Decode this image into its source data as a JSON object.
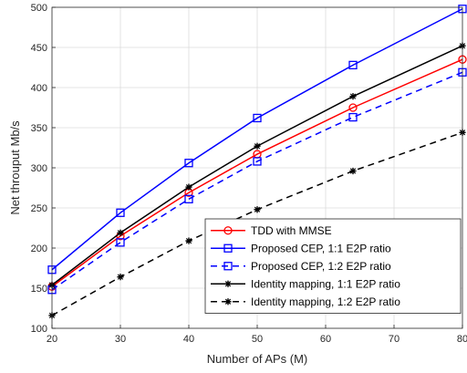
{
  "chart_data": {
    "type": "line",
    "title": "",
    "xlabel": "Number of APs (M)",
    "ylabel": "Net throuput Mb/s",
    "xlim": [
      20,
      80
    ],
    "ylim": [
      100,
      500
    ],
    "xticks": [
      20,
      30,
      40,
      50,
      60,
      70,
      80
    ],
    "yticks": [
      100,
      150,
      200,
      250,
      300,
      350,
      400,
      450,
      500
    ],
    "grid": true,
    "legend_position": "bottom-right",
    "x": [
      20,
      30,
      40,
      50,
      64,
      80
    ],
    "series": [
      {
        "name": "TDD with MMSE",
        "values": [
          152,
          215,
          269,
          317,
          375,
          435
        ],
        "color": "#ff0000",
        "dash": "solid",
        "marker": "circle"
      },
      {
        "name": "Proposed CEP, 1:1 E2P ratio",
        "values": [
          173,
          244,
          306,
          362,
          428,
          498
        ],
        "color": "#0000ff",
        "dash": "solid",
        "marker": "square"
      },
      {
        "name": "Proposed CEP, 1:2 E2P ratio",
        "values": [
          148,
          207,
          261,
          308,
          363,
          419
        ],
        "color": "#0000ff",
        "dash": "dashed",
        "marker": "square"
      },
      {
        "name": "Identity mapping, 1:1 E2P ratio",
        "values": [
          154,
          219,
          276,
          327,
          389,
          452
        ],
        "color": "#000000",
        "dash": "solid",
        "marker": "star"
      },
      {
        "name": "Identity mapping, 1:2 E2P ratio",
        "values": [
          116,
          164,
          209,
          248,
          296,
          344
        ],
        "color": "#000000",
        "dash": "dashed",
        "marker": "star"
      }
    ]
  }
}
